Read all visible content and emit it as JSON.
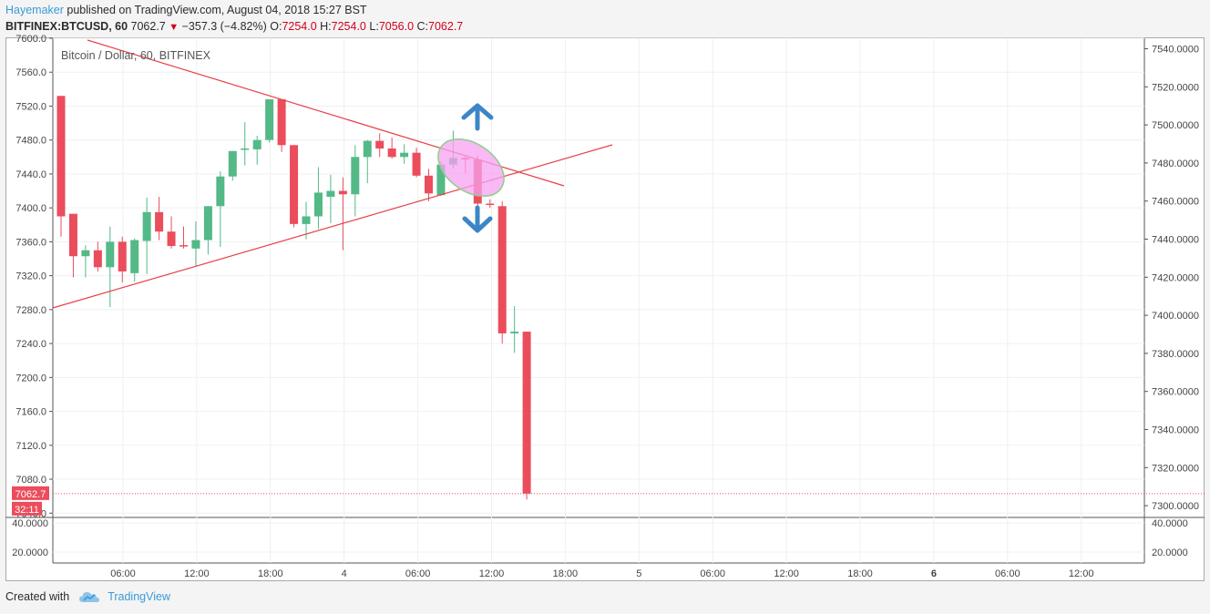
{
  "header": {
    "author": "Hayemaker",
    "published_text": "published on TradingView.com, August 04, 2018 15:27 BST",
    "symbol": "BITFINEX:BTCUSD, 60",
    "last": "7062.7",
    "change": "−357.3 (−4.82%)",
    "o_label": "O:",
    "o_value": "7254.0",
    "h_label": "H:",
    "h_value": "7254.0",
    "l_label": "L:",
    "l_value": "7056.0",
    "c_label": "C:",
    "c_value": "7062.7"
  },
  "footer": {
    "created_with": "Created with",
    "brand": "TradingView"
  },
  "colors": {
    "up": "#53b987",
    "down": "#eb4d5c",
    "trendline": "#e8404a",
    "arrow": "#3d85c6",
    "ellipse_fill": "#f7a1f0",
    "ellipse_stroke": "#8ccf8c",
    "grid": "#eef0f3"
  },
  "chart_data": {
    "type": "candlestick",
    "title": "Bitcoin / Dollar, 60, BITFINEX",
    "price_label": "7062.7",
    "countdown_label": "32:11",
    "left_axis": {
      "ticks": [
        "7600.0",
        "7560.0",
        "7520.0",
        "7480.0",
        "7440.0",
        "7400.0",
        "7360.0",
        "7320.0",
        "7280.0",
        "7240.0",
        "7200.0",
        "7160.0",
        "7120.0",
        "7080.0",
        "7040.0"
      ],
      "range": [
        7036,
        7600
      ]
    },
    "right_axis": {
      "ticks": [
        "7540.0000",
        "7520.0000",
        "7500.0000",
        "7480.0000",
        "7460.0000",
        "7440.0000",
        "7420.0000",
        "7400.0000",
        "7380.0000",
        "7360.0000",
        "7340.0000",
        "7320.0000",
        "7300.0000"
      ]
    },
    "lower_pane": {
      "left_ticks": [
        "40.0000",
        "20.0000"
      ],
      "right_ticks": [
        "40.0000",
        "20.0000"
      ]
    },
    "x_ticks": [
      {
        "label": "06:00",
        "bold": false
      },
      {
        "label": "12:00",
        "bold": false
      },
      {
        "label": "18:00",
        "bold": false
      },
      {
        "label": "4",
        "bold": false
      },
      {
        "label": "06:00",
        "bold": false
      },
      {
        "label": "12:00",
        "bold": false
      },
      {
        "label": "18:00",
        "bold": false
      },
      {
        "label": "5",
        "bold": false
      },
      {
        "label": "06:00",
        "bold": false
      },
      {
        "label": "12:00",
        "bold": false
      },
      {
        "label": "18:00",
        "bold": false
      },
      {
        "label": "6",
        "bold": true
      },
      {
        "label": "06:00",
        "bold": false
      },
      {
        "label": "12:00",
        "bold": false
      }
    ],
    "candles": [
      {
        "o": 7532,
        "h": 7532,
        "l": 7366,
        "c": 7390
      },
      {
        "o": 7393,
        "h": 7393,
        "l": 7318,
        "c": 7343
      },
      {
        "o": 7343,
        "h": 7356,
        "l": 7318,
        "c": 7350
      },
      {
        "o": 7350,
        "h": 7360,
        "l": 7325,
        "c": 7330
      },
      {
        "o": 7330,
        "h": 7378,
        "l": 7283,
        "c": 7360
      },
      {
        "o": 7360,
        "h": 7366,
        "l": 7312,
        "c": 7325
      },
      {
        "o": 7323,
        "h": 7364,
        "l": 7313,
        "c": 7362
      },
      {
        "o": 7361,
        "h": 7412,
        "l": 7322,
        "c": 7395
      },
      {
        "o": 7395,
        "h": 7413,
        "l": 7362,
        "c": 7372
      },
      {
        "o": 7372,
        "h": 7390,
        "l": 7352,
        "c": 7355
      },
      {
        "o": 7356,
        "h": 7378,
        "l": 7352,
        "c": 7355
      },
      {
        "o": 7352,
        "h": 7384,
        "l": 7331,
        "c": 7362
      },
      {
        "o": 7362,
        "h": 7400,
        "l": 7345,
        "c": 7402
      },
      {
        "o": 7402,
        "h": 7443,
        "l": 7354,
        "c": 7437
      },
      {
        "o": 7437,
        "h": 7463,
        "l": 7432,
        "c": 7467
      },
      {
        "o": 7469,
        "h": 7501,
        "l": 7450,
        "c": 7470
      },
      {
        "o": 7469,
        "h": 7485,
        "l": 7451,
        "c": 7480
      },
      {
        "o": 7480,
        "h": 7528,
        "l": 7477,
        "c": 7528
      },
      {
        "o": 7528,
        "h": 7528,
        "l": 7466,
        "c": 7474
      },
      {
        "o": 7474,
        "h": 7474,
        "l": 7377,
        "c": 7381
      },
      {
        "o": 7381,
        "h": 7407,
        "l": 7363,
        "c": 7390
      },
      {
        "o": 7390,
        "h": 7448,
        "l": 7375,
        "c": 7418
      },
      {
        "o": 7413,
        "h": 7439,
        "l": 7382,
        "c": 7420
      },
      {
        "o": 7420,
        "h": 7436,
        "l": 7350,
        "c": 7416
      },
      {
        "o": 7416,
        "h": 7474,
        "l": 7390,
        "c": 7460
      },
      {
        "o": 7460,
        "h": 7480,
        "l": 7429,
        "c": 7479
      },
      {
        "o": 7479,
        "h": 7488,
        "l": 7460,
        "c": 7470
      },
      {
        "o": 7470,
        "h": 7483,
        "l": 7458,
        "c": 7460
      },
      {
        "o": 7460,
        "h": 7475,
        "l": 7452,
        "c": 7465
      },
      {
        "o": 7465,
        "h": 7471,
        "l": 7436,
        "c": 7438
      },
      {
        "o": 7438,
        "h": 7446,
        "l": 7408,
        "c": 7417
      },
      {
        "o": 7415,
        "h": 7455,
        "l": 7414,
        "c": 7451
      },
      {
        "o": 7451,
        "h": 7491,
        "l": 7446,
        "c": 7459
      },
      {
        "o": 7459,
        "h": 7462,
        "l": 7441,
        "c": 7457
      },
      {
        "o": 7457,
        "h": 7462,
        "l": 7400,
        "c": 7405
      },
      {
        "o": 7405,
        "h": 7410,
        "l": 7400,
        "c": 7404
      },
      {
        "o": 7402,
        "h": 7408,
        "l": 7240,
        "c": 7252
      },
      {
        "o": 7252,
        "h": 7284,
        "l": 7229,
        "c": 7254
      },
      {
        "o": 7254,
        "h": 7254,
        "l": 7056,
        "c": 7063
      }
    ]
  }
}
